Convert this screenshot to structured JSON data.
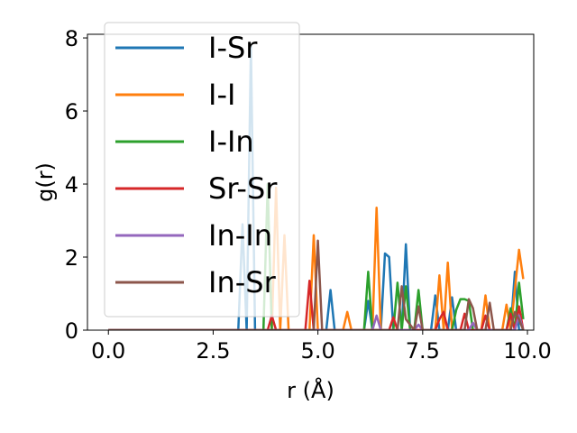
{
  "chart_data": {
    "type": "line",
    "xlabel": "r (Å)",
    "ylabel": "g(r)",
    "xlim": [
      -0.5,
      10.15
    ],
    "ylim": [
      0,
      8.1
    ],
    "xticks": [
      0.0,
      2.5,
      5.0,
      7.5,
      10.0
    ],
    "xtick_labels": [
      "0.0",
      "2.5",
      "5.0",
      "7.5",
      "10.0"
    ],
    "yticks": [
      0,
      2,
      4,
      6,
      8
    ],
    "ytick_labels": [
      "0",
      "2",
      "4",
      "6",
      "8"
    ],
    "grid": false,
    "legend_position": "upper-left",
    "series": [
      {
        "name": "I-Sr",
        "color": "#1f77b4",
        "x": [
          0,
          3.1,
          3.2,
          3.3,
          3.4,
          3.5,
          3.6,
          5.2,
          5.3,
          5.4,
          6.1,
          6.2,
          6.3,
          6.5,
          6.6,
          6.7,
          6.8,
          7.0,
          7.1,
          7.2,
          7.7,
          7.8,
          7.9,
          8.1,
          8.2,
          8.3,
          9.6,
          9.7,
          9.8,
          9.9
        ],
        "y": [
          0,
          0,
          2.9,
          0,
          7.8,
          0,
          0,
          0,
          1.1,
          0,
          0,
          0.8,
          0,
          0,
          2.1,
          2.0,
          0,
          0,
          2.35,
          0,
          0,
          0.95,
          0,
          0,
          0.9,
          0,
          0,
          1.6,
          0,
          0
        ]
      },
      {
        "name": "I-I",
        "color": "#ff7f0e",
        "x": [
          0,
          3.9,
          4.0,
          4.1,
          4.2,
          4.3,
          4.8,
          4.9,
          5.0,
          5.6,
          5.7,
          5.8,
          6.3,
          6.4,
          6.5,
          7.8,
          7.9,
          8.0,
          8.1,
          8.2,
          8.9,
          9.0,
          9.1,
          9.4,
          9.5,
          9.6,
          9.8,
          9.9
        ],
        "y": [
          0,
          0,
          3.9,
          0,
          2.6,
          0,
          0,
          2.6,
          0,
          0,
          0.5,
          0,
          0,
          3.35,
          0,
          0,
          1.5,
          0,
          1.85,
          0,
          0,
          0.95,
          0,
          0,
          0.7,
          0,
          2.2,
          1.4
        ]
      },
      {
        "name": "I-In",
        "color": "#2ca02c",
        "x": [
          0,
          3.7,
          3.8,
          3.9,
          6.1,
          6.2,
          6.3,
          6.8,
          6.9,
          7.0,
          7.1,
          7.2,
          7.3,
          7.4,
          7.5,
          8.2,
          8.3,
          8.4,
          8.5,
          8.6,
          8.7,
          9.5,
          9.6,
          9.7,
          9.8,
          9.9
        ],
        "y": [
          0,
          0,
          4.0,
          0,
          0,
          1.6,
          0,
          0,
          1.3,
          0,
          1.2,
          0,
          0,
          1.1,
          0,
          0,
          0.55,
          0.85,
          0.85,
          0.8,
          0,
          0,
          0.6,
          0,
          1.3,
          0.3
        ]
      },
      {
        "name": "Sr-Sr",
        "color": "#d62728",
        "x": [
          0,
          3.8,
          3.9,
          4.0,
          4.7,
          4.8,
          4.9,
          6.7,
          6.8,
          6.9,
          7.8,
          7.9,
          8.0,
          8.1,
          8.4,
          8.5,
          8.6,
          8.9,
          9.0,
          9.1,
          9.5,
          9.6,
          9.7,
          9.8,
          9.9
        ],
        "y": [
          0,
          0,
          0.4,
          0,
          0,
          1.35,
          0,
          0,
          0.35,
          0,
          0,
          0.3,
          0.5,
          0,
          0,
          0.45,
          0,
          0,
          0.4,
          0,
          0,
          0.45,
          0,
          0.65,
          0
        ]
      },
      {
        "name": "In-In",
        "color": "#9467bd",
        "x": [
          0,
          6.3,
          6.4,
          6.5,
          7.3,
          7.4,
          7.5,
          8.6,
          8.7,
          8.8,
          9.7,
          9.8,
          9.9
        ],
        "y": [
          0,
          0,
          0.4,
          0,
          0,
          0.15,
          0,
          0,
          0.2,
          0,
          0,
          0.4,
          0
        ]
      },
      {
        "name": "In-Sr",
        "color": "#8c564b",
        "x": [
          0,
          4.9,
          5.0,
          5.1,
          6.9,
          7.0,
          7.1,
          7.3,
          7.4,
          7.5,
          8.5,
          8.6,
          8.7,
          8.8,
          9.0,
          9.1,
          9.2,
          9.6,
          9.7,
          9.8,
          9.9
        ],
        "y": [
          0,
          0,
          2.45,
          0,
          0,
          1.2,
          0.3,
          0,
          0.65,
          0,
          0,
          0.85,
          0.6,
          0,
          0,
          0.75,
          0,
          0,
          0.5,
          0.3,
          0
        ]
      }
    ]
  }
}
